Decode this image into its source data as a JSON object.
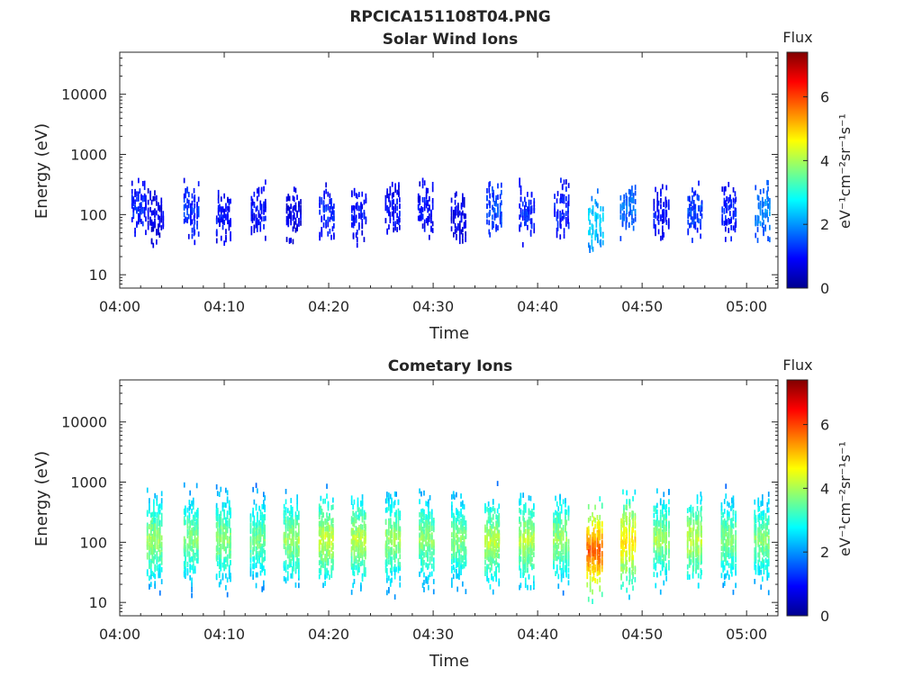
{
  "figure": {
    "title": "RPCICA151108T04.PNG",
    "colormap": [
      "#00008f",
      "#0000ff",
      "#0080ff",
      "#00ffff",
      "#80ff80",
      "#ffff00",
      "#ff8000",
      "#ff0000",
      "#800000"
    ]
  },
  "chart_data": [
    {
      "type": "heatmap",
      "title": "Solar Wind Ions",
      "xlabel": "Time",
      "ylabel": "Energy (eV)",
      "x_ticks": [
        "04:00",
        "04:10",
        "04:20",
        "04:30",
        "04:40",
        "04:50",
        "05:00"
      ],
      "y_ticks": [
        "10",
        "100",
        "1000",
        "10000"
      ],
      "y_scale": "log",
      "xlim": [
        "04:00",
        "05:03"
      ],
      "ylim": [
        6,
        50000
      ],
      "colorbar": {
        "title": "Flux",
        "label": "eV⁻¹cm⁻²sr⁻¹s⁻¹",
        "ticks": [
          "0",
          "2",
          "4",
          "6"
        ],
        "range": [
          0,
          7.4
        ]
      },
      "bursts": [
        {
          "t": 1.8,
          "e": 130,
          "flux": 1.2
        },
        {
          "t": 3.4,
          "e": 90,
          "flux": 0.8
        },
        {
          "t": 6.8,
          "e": 120,
          "flux": 1.3
        },
        {
          "t": 9.9,
          "e": 90,
          "flux": 1.0
        },
        {
          "t": 13.2,
          "e": 110,
          "flux": 1.0
        },
        {
          "t": 16.6,
          "e": 100,
          "flux": 0.8
        },
        {
          "t": 19.8,
          "e": 110,
          "flux": 1.2
        },
        {
          "t": 22.8,
          "e": 100,
          "flux": 1.0
        },
        {
          "t": 26.1,
          "e": 110,
          "flux": 1.0
        },
        {
          "t": 29.2,
          "e": 120,
          "flux": 1.0
        },
        {
          "t": 32.4,
          "e": 90,
          "flux": 0.8
        },
        {
          "t": 35.8,
          "e": 120,
          "flux": 1.5
        },
        {
          "t": 38.9,
          "e": 110,
          "flux": 1.2
        },
        {
          "t": 42.3,
          "e": 120,
          "flux": 1.2
        },
        {
          "t": 45.5,
          "e": 70,
          "flux": 2.6
        },
        {
          "t": 48.6,
          "e": 130,
          "flux": 1.8
        },
        {
          "t": 51.8,
          "e": 100,
          "flux": 1.0
        },
        {
          "t": 55.0,
          "e": 110,
          "flux": 1.5
        },
        {
          "t": 58.3,
          "e": 110,
          "flux": 1.2
        },
        {
          "t": 61.5,
          "e": 110,
          "flux": 2.0
        }
      ]
    },
    {
      "type": "heatmap",
      "title": "Cometary Ions",
      "xlabel": "Time",
      "ylabel": "Energy (eV)",
      "x_ticks": [
        "04:00",
        "04:10",
        "04:20",
        "04:30",
        "04:40",
        "04:50",
        "05:00"
      ],
      "y_ticks": [
        "10",
        "100",
        "1000",
        "10000"
      ],
      "y_scale": "log",
      "xlim": [
        "04:00",
        "05:03"
      ],
      "ylim": [
        6,
        50000
      ],
      "colorbar": {
        "title": "Flux",
        "label": "eV⁻¹cm⁻²sr⁻¹s⁻¹",
        "ticks": [
          "0",
          "2",
          "4",
          "6"
        ],
        "range": [
          0,
          7.4
        ]
      },
      "bursts": [
        {
          "t": 3.3,
          "e": 110,
          "flux": 4.0
        },
        {
          "t": 6.8,
          "e": 110,
          "flux": 3.8
        },
        {
          "t": 9.9,
          "e": 110,
          "flux": 3.9
        },
        {
          "t": 13.2,
          "e": 110,
          "flux": 3.7
        },
        {
          "t": 16.4,
          "e": 110,
          "flux": 4.0
        },
        {
          "t": 19.7,
          "e": 110,
          "flux": 4.3
        },
        {
          "t": 22.8,
          "e": 110,
          "flux": 4.2
        },
        {
          "t": 26.1,
          "e": 110,
          "flux": 4.0
        },
        {
          "t": 29.3,
          "e": 110,
          "flux": 3.9
        },
        {
          "t": 32.4,
          "e": 110,
          "flux": 3.8
        },
        {
          "t": 35.6,
          "e": 100,
          "flux": 4.2
        },
        {
          "t": 38.9,
          "e": 110,
          "flux": 4.2
        },
        {
          "t": 42.2,
          "e": 110,
          "flux": 4.0
        },
        {
          "t": 45.4,
          "e": 70,
          "flux": 5.9
        },
        {
          "t": 48.6,
          "e": 100,
          "flux": 5.0
        },
        {
          "t": 51.8,
          "e": 110,
          "flux": 4.0
        },
        {
          "t": 55.0,
          "e": 110,
          "flux": 4.3
        },
        {
          "t": 58.2,
          "e": 110,
          "flux": 3.8
        },
        {
          "t": 61.4,
          "e": 110,
          "flux": 3.8
        }
      ]
    }
  ]
}
